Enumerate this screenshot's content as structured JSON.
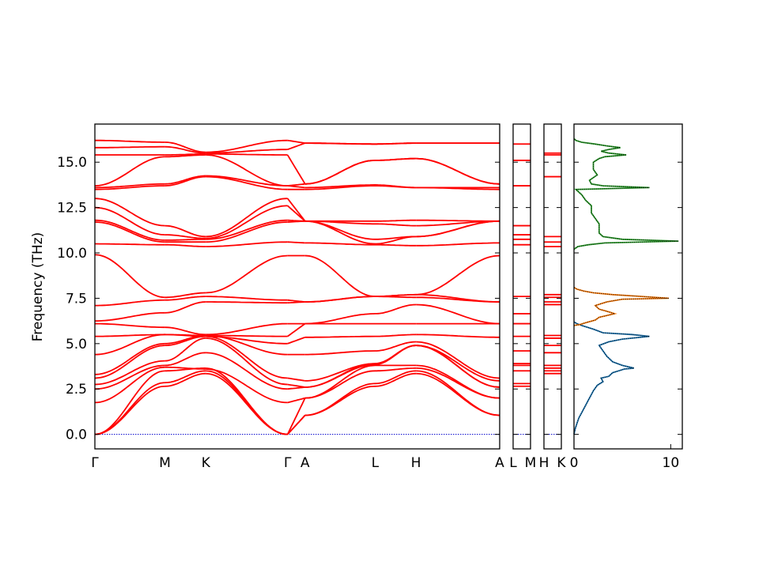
{
  "chart_data": {
    "type": "line",
    "ylabel": "Frequency (THz)",
    "ylim": [
      -0.8,
      17.1
    ],
    "yticks": [
      "0.0",
      "2.5",
      "5.0",
      "7.5",
      "10.0",
      "12.5",
      "15.0"
    ],
    "ytick_values": [
      0.0,
      2.5,
      5.0,
      7.5,
      10.0,
      12.5,
      15.0
    ],
    "colors": {
      "bands": "#ff0000",
      "zero_line": "#0000cc",
      "dos_total": "#000000",
      "dos_1": "#1f77b4",
      "dos_2": "#ff7f0e",
      "dos_3": "#2ca02c"
    },
    "panels": [
      {
        "kind": "band_structure",
        "path": [
          "Γ",
          "M",
          "K",
          "Γ",
          "A",
          "L",
          "H",
          "A"
        ],
        "xlabels": [
          "Γ",
          "M",
          "K",
          "Γ",
          "A",
          "L",
          "H",
          "A"
        ],
        "k": [
          0.0,
          0.36,
          0.57,
          0.99,
          1.08,
          1.44,
          1.65,
          2.08
        ],
        "bands": [
          [
            0,
            2.65,
            3.35,
            0,
            1.05,
            2.65,
            3.35,
            1.05
          ],
          [
            0,
            2.85,
            3.5,
            0,
            1.05,
            2.8,
            3.5,
            1.05
          ],
          [
            0,
            3.5,
            3.65,
            0,
            2.0,
            3.5,
            3.65,
            2.0
          ],
          [
            1.75,
            3.7,
            3.6,
            1.75,
            2.0,
            3.8,
            3.8,
            2.0
          ],
          [
            2.5,
            3.8,
            4.5,
            2.5,
            2.6,
            3.85,
            4.9,
            2.6
          ],
          [
            2.75,
            4.05,
            5.3,
            2.75,
            2.6,
            3.9,
            4.9,
            2.6
          ],
          [
            3.1,
            4.9,
            5.4,
            3.1,
            2.95,
            3.9,
            4.9,
            2.95
          ],
          [
            3.3,
            5.0,
            5.45,
            4.4,
            4.4,
            4.6,
            5.1,
            3.1
          ],
          [
            4.4,
            5.5,
            5.4,
            5.0,
            5.35,
            5.4,
            5.5,
            5.35
          ],
          [
            5.4,
            5.5,
            5.45,
            5.4,
            6.1,
            6.1,
            6.1,
            6.1
          ],
          [
            6.1,
            5.9,
            5.5,
            6.1,
            6.1,
            6.65,
            7.15,
            6.1
          ],
          [
            6.25,
            6.7,
            7.3,
            7.25,
            7.3,
            7.6,
            7.55,
            7.3
          ],
          [
            7.1,
            7.4,
            7.6,
            7.4,
            7.3,
            7.6,
            7.7,
            7.3
          ],
          [
            9.9,
            7.55,
            7.8,
            9.85,
            9.85,
            7.6,
            7.7,
            9.85
          ],
          [
            10.5,
            10.45,
            10.35,
            10.6,
            10.55,
            10.45,
            10.4,
            10.55
          ],
          [
            11.7,
            10.6,
            10.6,
            11.7,
            11.75,
            10.5,
            10.9,
            11.75
          ],
          [
            11.8,
            10.7,
            10.75,
            11.8,
            11.75,
            10.75,
            10.9,
            11.75
          ],
          [
            12.5,
            11.0,
            10.8,
            12.6,
            11.75,
            11.6,
            11.5,
            11.75
          ],
          [
            13.0,
            11.5,
            10.9,
            13.0,
            11.75,
            11.75,
            11.8,
            11.75
          ],
          [
            13.5,
            13.7,
            14.2,
            13.5,
            13.5,
            13.7,
            13.6,
            13.5
          ],
          [
            13.6,
            13.8,
            14.25,
            13.7,
            13.6,
            13.75,
            13.6,
            13.6
          ],
          [
            13.7,
            15.3,
            15.4,
            13.7,
            13.8,
            15.1,
            15.2,
            13.8
          ],
          [
            15.4,
            15.4,
            15.45,
            15.4,
            13.8,
            15.1,
            15.2,
            13.8
          ],
          [
            15.8,
            15.85,
            15.5,
            15.7,
            16.05,
            16.0,
            16.05,
            16.05
          ],
          [
            16.2,
            16.1,
            15.55,
            16.2,
            16.05,
            16.0,
            16.05,
            16.05
          ]
        ]
      },
      {
        "kind": "band_structure",
        "path": [
          "L",
          "M"
        ],
        "xlabels": [
          "L",
          "M"
        ],
        "levels": [
          2.65,
          2.8,
          3.5,
          3.8,
          3.9,
          4.6,
          5.4,
          6.1,
          6.65,
          7.6,
          10.45,
          10.75,
          11.0,
          11.5,
          13.7,
          15.1,
          16.0
        ]
      },
      {
        "kind": "band_structure",
        "path": [
          "H",
          "K"
        ],
        "xlabels": [
          "H",
          "K"
        ],
        "levels": [
          3.35,
          3.5,
          3.65,
          3.8,
          4.5,
          4.9,
          5.3,
          5.45,
          7.15,
          7.3,
          7.55,
          7.7,
          10.35,
          10.6,
          10.9,
          14.2,
          15.4,
          15.5
        ]
      },
      {
        "kind": "dos",
        "xlim": [
          0,
          11.2
        ],
        "xticks": [
          "0",
          "10"
        ],
        "xtick_values": [
          0,
          10
        ],
        "series": [
          {
            "color_key": "dos_1",
            "points": [
              [
                0,
                0
              ],
              [
                0.12,
                0.3
              ],
              [
                0.3,
                0.6
              ],
              [
                0.5,
                0.9
              ],
              [
                0.8,
                1.2
              ],
              [
                1.1,
                1.5
              ],
              [
                1.4,
                1.8
              ],
              [
                1.7,
                2.1
              ],
              [
                2.0,
                2.4
              ],
              [
                2.4,
                2.7
              ],
              [
                3.0,
                2.9
              ],
              [
                2.8,
                3.1
              ],
              [
                3.6,
                3.2
              ],
              [
                4.0,
                3.4
              ],
              [
                4.6,
                3.5
              ],
              [
                5.2,
                3.6
              ],
              [
                6.2,
                3.65
              ],
              [
                5.0,
                3.8
              ],
              [
                4.0,
                4.0
              ],
              [
                3.4,
                4.3
              ],
              [
                3.0,
                4.6
              ],
              [
                2.6,
                4.9
              ],
              [
                3.6,
                5.1
              ],
              [
                5.0,
                5.25
              ],
              [
                7.8,
                5.4
              ],
              [
                6.0,
                5.5
              ],
              [
                3.0,
                5.6
              ],
              [
                2.0,
                5.8
              ],
              [
                0.8,
                6.0
              ],
              [
                0.3,
                6.1
              ],
              [
                0,
                6.2
              ]
            ]
          },
          {
            "color_key": "dos_2",
            "points": [
              [
                0,
                6.0
              ],
              [
                0.6,
                6.05
              ],
              [
                1.2,
                6.15
              ],
              [
                2.2,
                6.3
              ],
              [
                2.6,
                6.45
              ],
              [
                3.4,
                6.55
              ],
              [
                4.2,
                6.65
              ],
              [
                3.6,
                6.75
              ],
              [
                2.6,
                6.9
              ],
              [
                2.2,
                7.1
              ],
              [
                3.4,
                7.3
              ],
              [
                5.0,
                7.45
              ],
              [
                9.8,
                7.5
              ],
              [
                7.0,
                7.6
              ],
              [
                4.0,
                7.7
              ],
              [
                2.0,
                7.8
              ],
              [
                1.0,
                7.9
              ],
              [
                0.3,
                8.0
              ],
              [
                0,
                8.1
              ]
            ]
          },
          {
            "color_key": "dos_3",
            "points": [
              [
                0,
                10.2
              ],
              [
                0.4,
                10.35
              ],
              [
                1.5,
                10.45
              ],
              [
                3.2,
                10.55
              ],
              [
                10.8,
                10.65
              ],
              [
                5.0,
                10.75
              ],
              [
                3.0,
                10.9
              ],
              [
                2.6,
                11.1
              ],
              [
                2.6,
                11.6
              ],
              [
                2.2,
                11.9
              ],
              [
                1.8,
                12.2
              ],
              [
                1.8,
                12.6
              ],
              [
                1.2,
                12.9
              ],
              [
                0.8,
                13.2
              ],
              [
                0.2,
                13.5
              ],
              [
                7.8,
                13.6
              ],
              [
                3.0,
                13.7
              ],
              [
                1.8,
                13.8
              ],
              [
                1.6,
                14.0
              ],
              [
                2.4,
                14.3
              ],
              [
                2.0,
                14.6
              ],
              [
                2.0,
                15.0
              ],
              [
                2.6,
                15.2
              ],
              [
                3.2,
                15.3
              ],
              [
                5.4,
                15.4
              ],
              [
                3.6,
                15.5
              ],
              [
                2.8,
                15.6
              ],
              [
                3.6,
                15.7
              ],
              [
                4.8,
                15.8
              ],
              [
                3.4,
                15.9
              ],
              [
                2.2,
                16.0
              ],
              [
                0.8,
                16.1
              ],
              [
                0.2,
                16.2
              ],
              [
                0,
                16.3
              ]
            ]
          }
        ]
      }
    ]
  }
}
